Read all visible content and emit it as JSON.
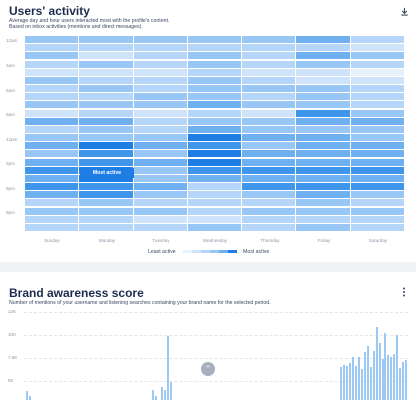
{
  "activity": {
    "title": "Users' activity",
    "subtitle_line1": "Average day and hour users interacted most with the profile's content.",
    "subtitle_line2": "Based on inbox activities (mentions and direct messages).",
    "download_icon": "download-icon",
    "y_labels": [
      "12am",
      "3am",
      "6am",
      "9am",
      "12pm",
      "3pm",
      "6pm",
      "9pm"
    ],
    "x_labels": [
      "Sunday",
      "Monday",
      "Tuesday",
      "Wednesday",
      "Thursday",
      "Friday",
      "Saturday"
    ],
    "tooltip": "Most active",
    "legend_least": "Least active",
    "legend_most": "Most active",
    "palette": [
      "#e7f2fd",
      "#cfe4fa",
      "#b5d6f8",
      "#99c7f5",
      "#6fb0f0",
      "#3f95ea",
      "#1f7de6"
    ],
    "chart_data": {
      "type": "heatmap",
      "days": [
        "Sunday",
        "Monday",
        "Tuesday",
        "Wednesday",
        "Thursday",
        "Friday",
        "Saturday"
      ],
      "hours": [
        "12am",
        "1am",
        "2am",
        "3am",
        "4am",
        "5am",
        "6am",
        "7am",
        "8am",
        "9am",
        "10am",
        "11am",
        "12pm",
        "1pm",
        "2pm",
        "3pm",
        "4pm",
        "5pm",
        "6pm",
        "7pm",
        "8pm",
        "9pm",
        "10pm",
        "11pm"
      ],
      "level_range": [
        0,
        6
      ],
      "values": [
        [
          3,
          3,
          3,
          3,
          3,
          4,
          2
        ],
        [
          2,
          2,
          2,
          2,
          2,
          2,
          1
        ],
        [
          3,
          1,
          2,
          3,
          2,
          4,
          3
        ],
        [
          2,
          3,
          2,
          3,
          2,
          3,
          2
        ],
        [
          1,
          1,
          1,
          2,
          1,
          1,
          0
        ],
        [
          3,
          2,
          2,
          3,
          2,
          1,
          1
        ],
        [
          2,
          3,
          2,
          3,
          3,
          3,
          2
        ],
        [
          2,
          2,
          3,
          3,
          2,
          3,
          2
        ],
        [
          3,
          3,
          3,
          4,
          3,
          3,
          2
        ],
        [
          1,
          2,
          1,
          2,
          1,
          5,
          3
        ],
        [
          4,
          4,
          2,
          3,
          3,
          4,
          4
        ],
        [
          2,
          3,
          2,
          4,
          3,
          3,
          3
        ],
        [
          3,
          3,
          3,
          6,
          4,
          4,
          3
        ],
        [
          4,
          6,
          4,
          5,
          3,
          4,
          4
        ],
        [
          3,
          5,
          3,
          6,
          4,
          4,
          4
        ],
        [
          4,
          5,
          4,
          6,
          4,
          4,
          4
        ],
        [
          5,
          6,
          3,
          5,
          5,
          5,
          5
        ],
        [
          4,
          6,
          3,
          4,
          4,
          4,
          4
        ],
        [
          5,
          5,
          4,
          2,
          5,
          5,
          5
        ],
        [
          4,
          5,
          3,
          2,
          3,
          4,
          3
        ],
        [
          2,
          3,
          2,
          2,
          2,
          3,
          2
        ],
        [
          3,
          3,
          3,
          2,
          3,
          3,
          3
        ],
        [
          2,
          2,
          1,
          1,
          2,
          2,
          2
        ],
        [
          2,
          2,
          2,
          3,
          2,
          3,
          2
        ]
      ]
    }
  },
  "brand": {
    "title": "Brand awareness score",
    "subtitle": "Number of mentions of your username and listening searches containing your brand name for the selected period.",
    "menu_icon": "more-vertical-icon",
    "scroll_icon": "chevron-up-icon",
    "scroll_glyph": "^",
    "y_labels": [
      "12K",
      "10K",
      "7.5K",
      "5K"
    ],
    "chart_data": {
      "type": "bar",
      "ylim": [
        0,
        12500
      ],
      "values": [
        1200,
        600,
        0,
        0,
        0,
        0,
        0,
        0,
        0,
        0,
        0,
        0,
        0,
        0,
        0,
        0,
        0,
        0,
        0,
        0,
        0,
        0,
        0,
        0,
        0,
        0,
        0,
        0,
        0,
        0,
        0,
        0,
        0,
        0,
        0,
        0,
        0,
        0,
        0,
        0,
        0,
        0,
        0,
        1300,
        600,
        0,
        1800,
        1400,
        8700,
        2500,
        0,
        0,
        0,
        0,
        0,
        0,
        0,
        0,
        0,
        0,
        0,
        0,
        0,
        0,
        0,
        0,
        0,
        0,
        0,
        0,
        0,
        0,
        0,
        0,
        0,
        0,
        0,
        0,
        0,
        0,
        0,
        0,
        0,
        0,
        0,
        0,
        0,
        0,
        0,
        0,
        0,
        0,
        0,
        0,
        0,
        0,
        0,
        0,
        0,
        0,
        0,
        0,
        0,
        0,
        0,
        0,
        0,
        4500,
        4800,
        4600,
        5100,
        5800,
        4700,
        5900,
        4200,
        6500,
        7400,
        4500,
        6700,
        10000,
        7800,
        5600,
        9200,
        6200,
        5800,
        6300,
        8800,
        4300,
        5200,
        5400
      ]
    }
  }
}
